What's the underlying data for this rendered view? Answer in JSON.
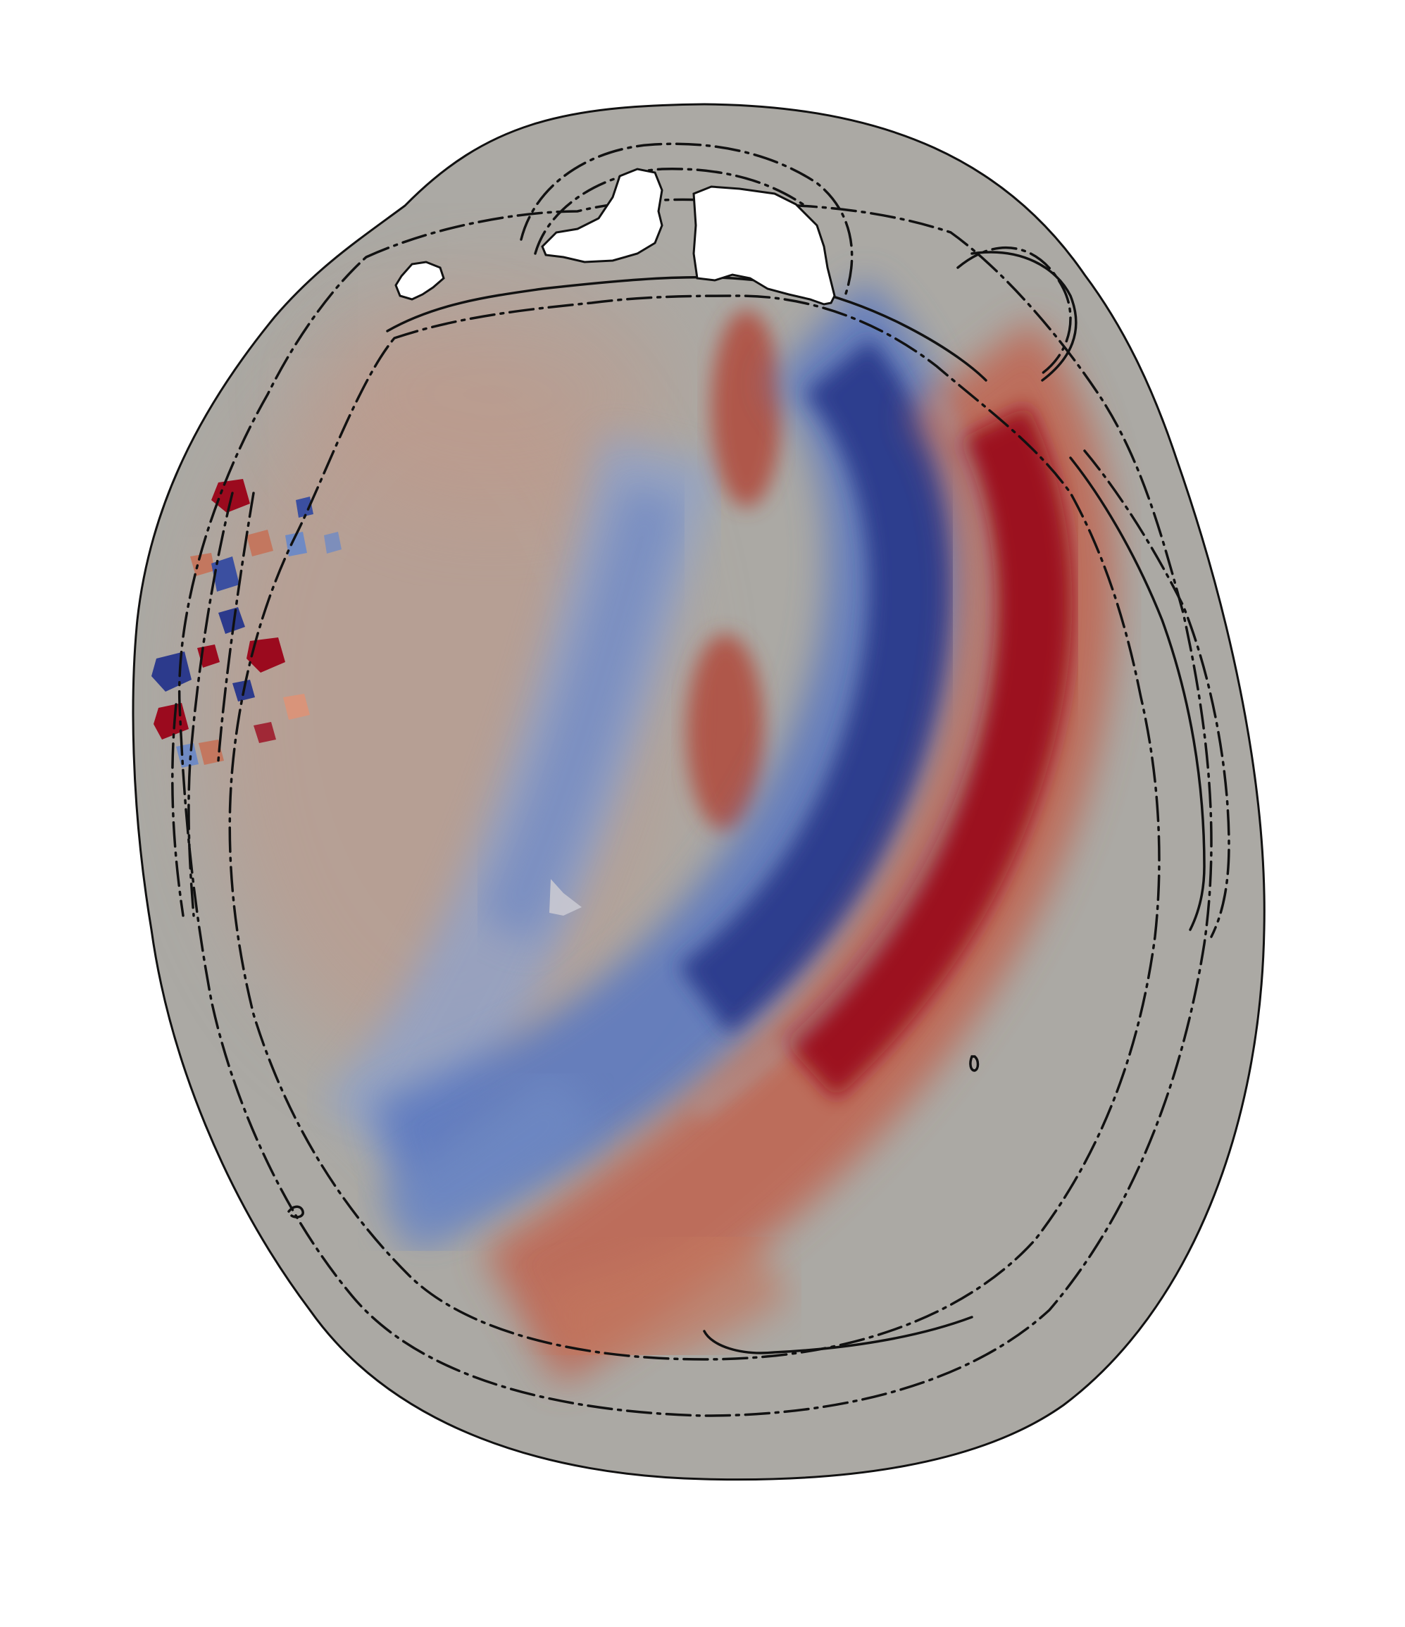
{
  "figure": {
    "kind": "simulated pressure wavefield on an axial head section",
    "background_color": "#ffffff",
    "tissue_color": "#aba9a4",
    "outline_color": "#111111",
    "cavity_color": "#ffffff",
    "positive_color": "#9b0a1e",
    "negative_color": "#2c3a8c",
    "colormap": [
      "#2c3a8c",
      "#6f8ac4",
      "#aba9a4",
      "#c8806a",
      "#9b0a1e"
    ]
  }
}
